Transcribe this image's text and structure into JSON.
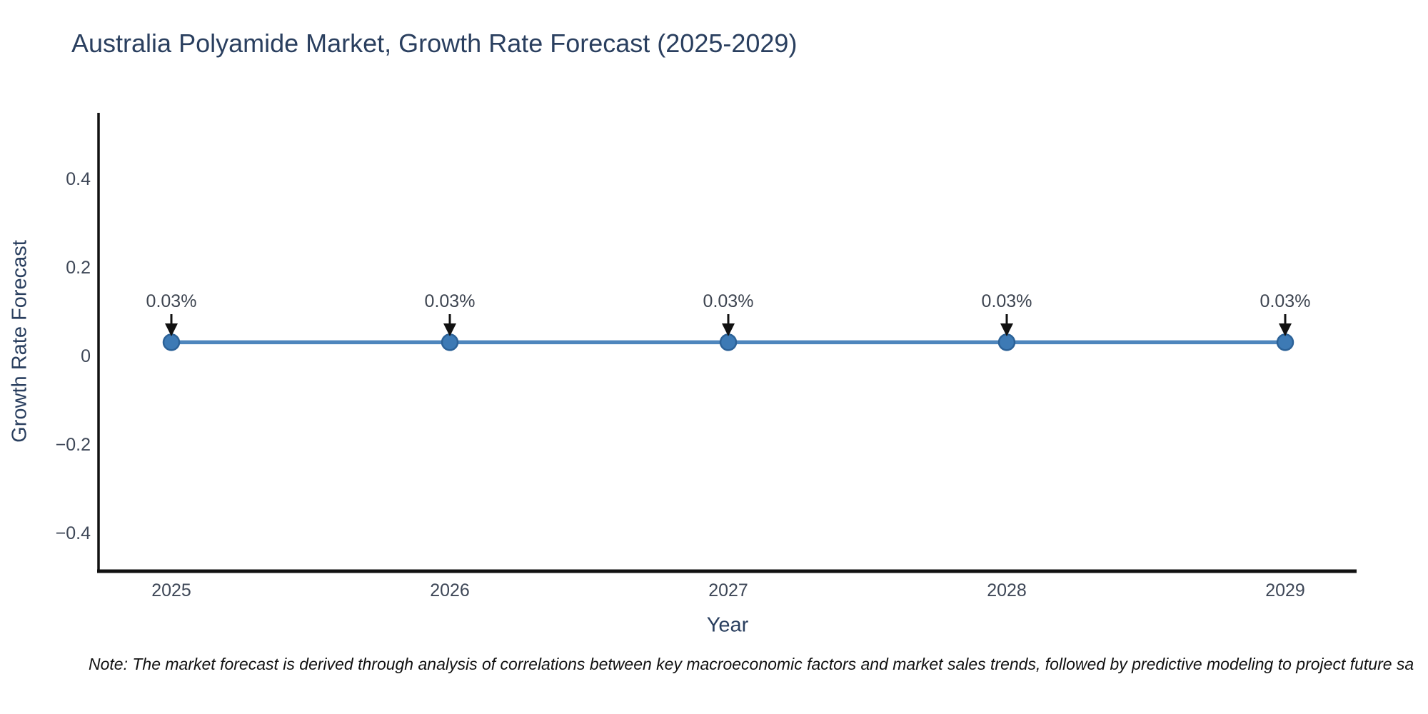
{
  "note": "Note: The market forecast is derived through analysis of correlations between key macroeconomic factors and market sales trends, followed by predictive modeling to project future sa",
  "chart_data": {
    "type": "line",
    "title": "Australia Polyamide Market, Growth Rate Forecast (2025-2029)",
    "xlabel": "Year",
    "ylabel": "Growth Rate Forecast",
    "x": [
      2025,
      2026,
      2027,
      2028,
      2029
    ],
    "xtick_labels": [
      "2025",
      "2026",
      "2027",
      "2028",
      "2029"
    ],
    "series": [
      {
        "name": "Growth Rate Forecast",
        "values": [
          0.03,
          0.03,
          0.03,
          0.03,
          0.03
        ]
      }
    ],
    "point_labels": [
      "0.03%",
      "0.03%",
      "0.03%",
      "0.03%",
      "0.03%"
    ],
    "yticks": [
      0.4,
      0.2,
      0,
      -0.2,
      -0.4
    ],
    "ytick_labels": [
      "0.4",
      "0.2",
      "0",
      "−0.2",
      "−0.4"
    ],
    "ylim": [
      -0.49,
      0.55
    ],
    "grid": false,
    "legend_position": "none",
    "marker_style": "circle-with-down-arrow-annotation",
    "colors": {
      "line": "#4e86bd",
      "marker_fill": "#3d7ab5",
      "marker_edge": "#2c6298",
      "axis_line": "#111111",
      "title_text": "#2a3f5f",
      "tick_text": "#3e4757",
      "annotation_text": "#3d4450",
      "arrow": "#111111",
      "background": "#ffffff"
    }
  }
}
